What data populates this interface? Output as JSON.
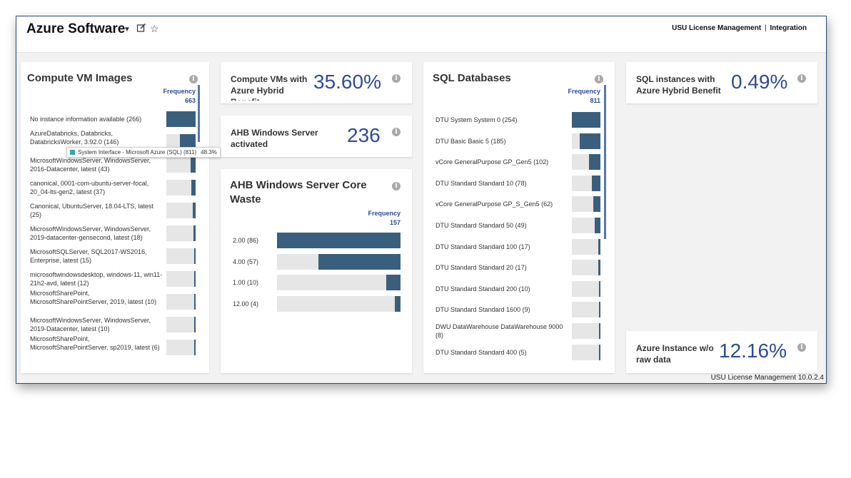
{
  "header": {
    "title": "Azure Software",
    "dropdown_icon": "caret-down-icon",
    "edit_icon": "edit-icon",
    "favorite_icon": "star-icon",
    "brand": "USU License Management",
    "brand_sep": "|",
    "brand_link": "Integration"
  },
  "colors": {
    "bar": "#3a5f7e",
    "track": "#e6e6e6",
    "accent": "#2e4c94"
  },
  "compute_vm_images": {
    "title": "Compute VM Images",
    "freq_label": "Frequency",
    "freq_total": "663",
    "rows": [
      {
        "label": "No instance information available (266)",
        "value": 266
      },
      {
        "label": "AzureDatabricks, Databricks, DatabricksWorker, 3.92.0 (146)",
        "value": 146
      },
      {
        "label": "MicrosoftWindowsServer, WindowsServer, 2016-Datacenter, latest (43)",
        "value": 43
      },
      {
        "label": "canonical, 0001-com-ubuntu-server-focal, 20_04-lts-gen2, latest (37)",
        "value": 37
      },
      {
        "label": "Canonical, UbuntuServer, 18.04-LTS, latest (25)",
        "value": 25
      },
      {
        "label": "MicrosoftWindowsServer, WindowsServer, 2019-datacenter-gensecond, latest (18)",
        "value": 18
      },
      {
        "label": "MicrosoftSQLServer, SQL2017-WS2016, Enterprise, latest (15)",
        "value": 15
      },
      {
        "label": "microsoftwindowsdesktop, windows-11, win11-21h2-avd, latest (12)",
        "value": 12
      },
      {
        "label": "MicrosoftSharePoint, MicrosoftSharePointServer, 2019, latest (10)",
        "value": 10
      },
      {
        "label": "MicrosoftWindowsServer, WindowsServer, 2019-Datacenter, latest (10)",
        "value": 10
      },
      {
        "label": "MicrosoftSharePoint, MicrosoftSharePointServer, sp2019, latest (6)",
        "value": 6
      }
    ]
  },
  "tooltip": {
    "label": "System Interface - Microsoft Azure (SQL) (811)",
    "percent": "48.3%"
  },
  "kpi_ahb_vms": {
    "label": "Compute VMs with Azure Hybrid Benefit",
    "value": "35.60%"
  },
  "kpi_ahb_windows": {
    "label": "AHB Windows Server activated",
    "value": "236"
  },
  "core_waste": {
    "title": "AHB Windows Server Core Waste",
    "freq_label": "Frequency",
    "freq_total": "157",
    "rows": [
      {
        "label": "2.00 (86)",
        "value": 86
      },
      {
        "label": "4.00 (57)",
        "value": 57
      },
      {
        "label": "1.00 (10)",
        "value": 10
      },
      {
        "label": "12.00 (4)",
        "value": 4
      }
    ]
  },
  "sql_databases": {
    "title": "SQL Databases",
    "freq_label": "Frequency",
    "freq_total": "811",
    "rows": [
      {
        "label": "DTU System System 0 (254)",
        "value": 254
      },
      {
        "label": "DTU Basic Basic 5 (185)",
        "value": 185
      },
      {
        "label": "vCore GeneralPurpose GP_Gen5 (102)",
        "value": 102
      },
      {
        "label": "DTU Standard Standard 10 (78)",
        "value": 78
      },
      {
        "label": "vCore GeneralPurpose GP_S_Gen5 (62)",
        "value": 62
      },
      {
        "label": "DTU Standard Standard 50 (49)",
        "value": 49
      },
      {
        "label": "DTU Standard Standard 100 (17)",
        "value": 17
      },
      {
        "label": "DTU Standard Standard 20 (17)",
        "value": 17
      },
      {
        "label": "DTU Standard Standard 200 (10)",
        "value": 10
      },
      {
        "label": "DTU Standard Standard 1600 (9)",
        "value": 9
      },
      {
        "label": "DWU DataWarehouse DataWarehouse 9000 (8)",
        "value": 8
      },
      {
        "label": "DTU Standard Standard 400 (5)",
        "value": 5
      }
    ]
  },
  "kpi_sql_ahb": {
    "label": "SQL instances with Azure Hybrid Benefit",
    "value": "0.49%"
  },
  "kpi_no_raw": {
    "label": "Azure Instance w/o raw data",
    "value": "12.16%"
  },
  "footer": {
    "version": "USU License Management 10.0.2.4"
  }
}
